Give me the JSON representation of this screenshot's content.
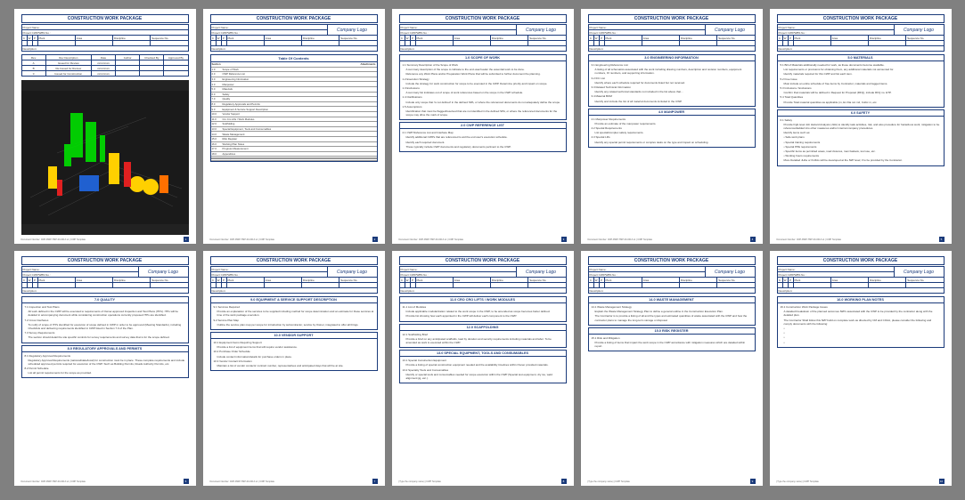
{
  "doc_title": "CONSTRUCTION WORK PACKAGE",
  "logo_text": "Company Logo",
  "footer_doc": "Document Number: CDP-RWP-TMP-00-0013-v1 | CWP Template",
  "footer_company": "[Type the company name] | CWP Template",
  "hdr": {
    "project_name_label": "Project Name:",
    "cwp_wbs_label": "Project CWP/WBS No.:",
    "cwp_letters": [
      "C",
      "W",
      "P"
    ],
    "col_plant": "Plant",
    "col_area": "Area",
    "col_discipline": "Discipline",
    "col_sequence": "Sequence No.",
    "description_label": "Description:"
  },
  "rev": {
    "h": [
      "Rev",
      "Rev Description",
      "Date",
      "Author",
      "Checked By",
      "Approved By"
    ],
    "rows": [
      [
        "A",
        "Issued for Review",
        "xx/xx/xxxx",
        "",
        "",
        ""
      ],
      [
        "B",
        "Re-Issued for Review",
        "xx/xx/xxxx",
        "",
        "",
        ""
      ],
      [
        "0",
        "Issued for Construction",
        "xx/xx/xxxx",
        "",
        "",
        ""
      ]
    ]
  },
  "toc": {
    "title": "Table Of Contents",
    "attach_label": "Attachments",
    "items": [
      [
        "1.0",
        "Scope of Work"
      ],
      [
        "2.0",
        "CWP Reference List"
      ],
      [
        "3.0",
        "Engineering Information"
      ],
      [
        "4.0",
        "Manpower"
      ],
      [
        "5.0",
        "Materials"
      ],
      [
        "6.0",
        "Safety"
      ],
      [
        "7.0",
        "Quality"
      ],
      [
        "8.0",
        "Regulatory Approvals and Permits"
      ],
      [
        "9.0",
        "Equipment & Service Support Description"
      ],
      [
        "10.0",
        "Vendor Support"
      ],
      [
        "11.0",
        "Cro Cro Lifts / Work Modules"
      ],
      [
        "12.0",
        "Scaffolding"
      ],
      [
        "13.0",
        "Special Equipment, Tools and Consumables"
      ],
      [
        "14.0",
        "Waste Management"
      ],
      [
        "15.0",
        "Risk Register"
      ],
      [
        "16.0",
        "Working Plan Notes"
      ],
      [
        "17.0",
        "Progress Measurement"
      ],
      [
        "18.0",
        "Appendices"
      ]
    ]
  },
  "p3": {
    "s1": {
      "title": "1.0   SCOPE OF WORK",
      "lines": [
        "1.1    Summary Description of the Scope of Work",
        "A summary description of the scope to indicate to the end-user/reader the essential work to be done.",
        "Reference any Work Plans and/or Preparation Work Plans that will be submitted to further document the planning.",
        "1.2    Execution Strategy",
        "Include the strategy for work construction for scope to be executed in the CWP. Determine priority and impact on scope.",
        "1.3    Exclusions",
        "A summary list indicates out of scope of work references based on the scope in the CWP schedule.",
        "1.4    Clarifications",
        "Include only scope that 'is not defined' in the defined SPA, or where the referenced documents do not adequately define the scope.",
        "1.5    Assumptions",
        "Identification that must be flagged/resolved that are not identified in the defined SPA, or where the referenced documents for the scope may drive the mark of scope."
      ]
    },
    "s2": {
      "title": "2.0   CWP REFERENCE LIST",
      "lines": [
        "2.1    CWP Reference List and Interface Map",
        "Identify additional CWPs that are referenced to aid the end user's execution schedule.",
        "Identify each required document.",
        "These typically include CWP documents and regulatory documents pertinent to the CWP."
      ]
    }
  },
  "p4": {
    "s1": {
      "title": "3.0   ENGINEERING INFORMATION",
      "lines": [
        "3.1    Engineering Reference List",
        "A listing of all schematics associated with the work including drawing numbers, description and revision numbers, equipment numbers, IO numbers, and supporting information.",
        "3.2    IFC List",
        "Identify where each schedule required for documents listed but not received.",
        "3.3    Related Technical Information",
        "Identify any related technical standards not included in the list above that...",
        "3.4    Material BOM",
        "Identify and include the list of all material documents included in the CWP."
      ]
    },
    "s2": {
      "title": "4.0   MANPOWER",
      "lines": [
        "4.1    Manpower Requirements",
        "Provide an estimate of the manpower requirements.",
        "4.2    Special Requirements",
        "List special/complex safety requirements.",
        "4.3    Special Lifts",
        "Identify any special permit requirements or complex tasks on the type and impact on scheduling."
      ]
    }
  },
  "p5": {
    "s1": {
      "title": "5.0   MATERIALS",
      "lines": [
        "5.1    Bill of Materials additionally needed for work, as these documents become available.",
        "List requirements or provisions for obtaining them, any additional materials not accounted for.",
        "Identify materials required for this CWP and list each item.",
        "5.2    Free Issue",
        "Must include an entire schedule of free items by Contractor, materials and tagged items.",
        "5.3    Inclusions / Exclusions",
        "Confirm that materials will be defined in Request for Proposal (RFQ), include RFQ no. ETP.",
        "5.4    Total Quantities",
        "Provide Total material quantities as applicable (m, Ex Dia not m2, Cubic m, etc."
      ]
    },
    "s2": {
      "title": "6.0   SAFETY",
      "lines": [
        "6.1    Safety",
        "Provide high-level Job Hazard Analysis (JHA) to identify task activities, risk, and also procedure for hazardous work; mitigation to be referenced/added into other measures and/or internal company procedures.",
        "Identify items such as:",
        "• Safe work plans",
        "• Special training requirements",
        "• Special PPE requirements",
        "• Specific items as permitted areas, road closures, man baskets, tool use, etc.",
        "• Working hours requirements",
        "More Detailed JHAs or FLRAs will be developed at the IWP level; if to be provided by the Contractor."
      ]
    }
  },
  "p6": {
    "s1": {
      "title": "7.0   QUALITY",
      "lines": [
        "7.1    Inspection and Test Plans",
        "All work defined in the CWP will be executed to requirements of Owner-approved Inspection and Test Plans (ITPs). ITPs will be detailed in accompanying document while considering construction operations currently proposed ITPs are identified.",
        "7.2    Cross Interfaces",
        "To notify of scope of ITPs identified for execution of scope defined in CWP in order to be approved (Meeting Standards), including Checklists and delivering requirements identified in CWP listed in Section 7.0 of the Plan.",
        "7.3    Survey Requirements",
        "The section should detail the site specific controls for survey requirements and survey data that is for the scope defined."
      ]
    },
    "s2": {
      "title": "8.0   REGULATORY APPROVALS AND PERMITS",
      "lines": [
        "8.1    Regulatory Approval Requirements",
        "Regulatory Approval Requirements (national/state/local) for construction must be in place. These complete requirements and include scheduled approved permits required for execution of the CWP. Such as Building Permits, Roads Authority Permits, etc.",
        "8.2    Permit Schedule",
        "List all permit requirements for the scope as provided."
      ]
    }
  },
  "p7": {
    "s1": {
      "title": "9.0   EQUIPMENT & SERVICE SUPPORT DESCRIPTION",
      "lines": [
        "9.1    Services Required",
        "Provide an explanation of the services to be supplied including method for scope determination and an estimate for these services at time of the work package execution.",
        "9.2    Service Plan Map",
        "Outline the service plan map per scope for introduction by subcontractor, service by Owner, integrated to offer all things."
      ]
    },
    "s2": {
      "title": "10.0   VENDOR SUPPORT",
      "lines": [
        "10.1    Equipment Items Requiring Support",
        "Provide a list of equipment items that will require vendor assistance.",
        "10.2    Purchase Order Schedule",
        "Include contact information/details for purchase orders in place.",
        "10.3    Vendor Contact Information",
        "Maintain a list of vendor contacts' contract number, representatives and anticipated days that will be at site."
      ]
    }
  },
  "p8": {
    "s1": {
      "title": "11.0   CRO CRO LIFTS / WORK MODULES",
      "lines": [
        "11.1    List of Modules",
        "Include applicable modularization related to the work scope in the CWP, to be amended as scope becomes better defined.",
        "Provide list showing how each appointed in the CWP will deliver each component to the CWP."
      ]
    },
    "s2": {
      "title": "12.0   SCAFFOLDING",
      "lines": [
        "12.1    Scaffolding Brief",
        "Provide a brief on any anticipated scaffolds, load by duration and security requirements including materials and labor. To be amended as work is executed within the CWP."
      ]
    },
    "s3": {
      "title": "13.0   SPECIAL EQUIPMENT, TOOLS AND CONSUMABLES",
      "lines": [
        "13.1    Special Construction Equipment",
        "Provide a listing of special construction equipment needed and the availability timelines within Owner provided materials.",
        "13.2    Specialty Tools and Consumables",
        "Identify or special tools and consumables needed for scope execution within the CWP (Special test equipment, dry ice, weld alignment jig, etc.)."
      ]
    }
  },
  "p9": {
    "s1": {
      "title": "14.0   WASTE MANAGEMENT",
      "lines": [
        "14.1    Waste Management Strategy",
        "Explain the Waste Management Strategy Plan to define a general outline in the Construction Execution Plan.",
        "The Contractor is to provide a listing of all and the types and estimated quantities of waste associated with the CWP and how the contractor plans to manage the long-term storage or disposal."
      ]
    },
    "s2": {
      "title": "15.0   RISK REGISTER",
      "lines": [
        "15.1    Risk and Mitigation",
        "Provide a listing of items that impact the work scope in the CWP accordance with mitigation measures which are detailed within report."
      ]
    }
  },
  "p10": {
    "s1": {
      "title": "16.0   WORKING PLAN NOTES",
      "lines": [
        "16.1    Construction Work Package Issues",
        "A detailed breakdown of the planned outcomes IWPs associated with the CWP to be provided by the contractor along with the detailed plan.",
        "The Contractor Shall follow this IWP build on complete work as directed by CM and COAA, please consider the following and comply documents with the following:",
        "•",
        "•",
        "•",
        "•"
      ]
    }
  },
  "colors": {
    "border": "#1a3a7a",
    "bg": "#808080",
    "page": "#ffffff",
    "red": "#cc0000"
  }
}
